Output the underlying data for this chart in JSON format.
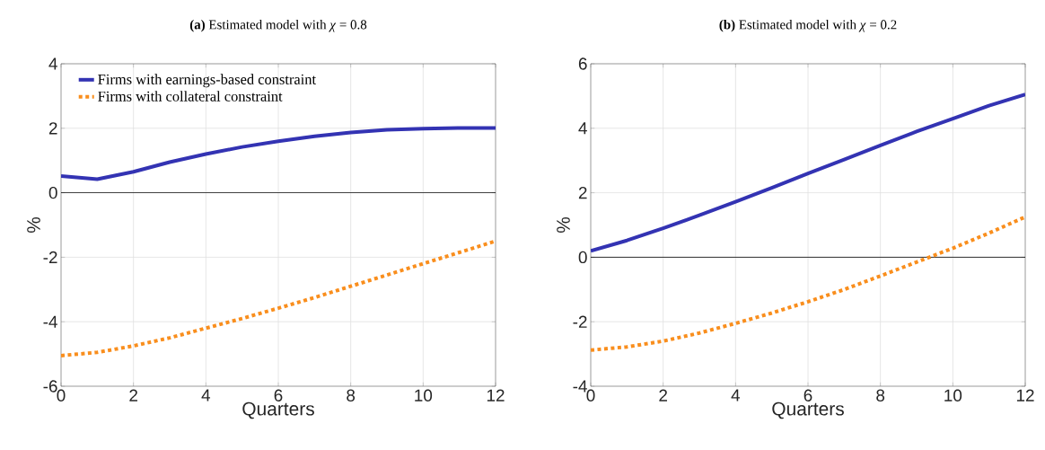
{
  "chart_data": [
    {
      "type": "line",
      "title": "**(a)** Estimated model with *χ* = 0.8",
      "xlabel": "Quarters",
      "ylabel": "%",
      "x": [
        0,
        1,
        2,
        3,
        4,
        5,
        6,
        7,
        8,
        9,
        10,
        11,
        12
      ],
      "series": [
        {
          "name": "Firms with earnings-based constraint",
          "color": "#3333b3",
          "line_style": "solid",
          "values": [
            0.52,
            0.42,
            0.65,
            0.95,
            1.2,
            1.42,
            1.6,
            1.75,
            1.87,
            1.95,
            1.99,
            2.01,
            2.01
          ]
        },
        {
          "name": "Firms with collateral constraint",
          "color": "#f98e1d",
          "line_style": "dotted",
          "values": [
            -5.05,
            -4.95,
            -4.75,
            -4.5,
            -4.2,
            -3.9,
            -3.58,
            -3.25,
            -2.9,
            -2.55,
            -2.2,
            -1.85,
            -1.5
          ]
        }
      ],
      "xlim": [
        0,
        12
      ],
      "xticks": [
        0,
        2,
        4,
        6,
        8,
        10,
        12
      ],
      "ylim": [
        -6,
        4
      ],
      "yticks": [
        -6,
        -4,
        -2,
        0,
        2,
        4
      ],
      "ref_lines": [
        {
          "axis": "y",
          "value": 0,
          "color": "#000000"
        }
      ],
      "grid": true,
      "legend": "top left"
    },
    {
      "type": "line",
      "title": "**(b)** Estimated model with *χ* = 0.2",
      "xlabel": "Quarters",
      "ylabel": "%",
      "x": [
        0,
        1,
        2,
        3,
        4,
        5,
        6,
        7,
        8,
        9,
        10,
        11,
        12
      ],
      "series": [
        {
          "color": "#3333b3",
          "line_style": "solid",
          "values": [
            0.2,
            0.52,
            0.9,
            1.3,
            1.72,
            2.15,
            2.6,
            3.03,
            3.47,
            3.9,
            4.3,
            4.7,
            5.05
          ]
        },
        {
          "color": "#f98e1d",
          "line_style": "dotted",
          "values": [
            -2.88,
            -2.78,
            -2.6,
            -2.35,
            -2.05,
            -1.73,
            -1.38,
            -1.0,
            -0.58,
            -0.15,
            0.28,
            0.75,
            1.25
          ]
        }
      ],
      "xlim": [
        0,
        12
      ],
      "xticks": [
        0,
        2,
        4,
        6,
        8,
        10,
        12
      ],
      "ylim": [
        -4,
        6
      ],
      "yticks": [
        -4,
        -2,
        0,
        2,
        4,
        6
      ],
      "ref_lines": [
        {
          "axis": "y",
          "value": 0,
          "color": "#000000"
        }
      ],
      "grid": true
    }
  ]
}
